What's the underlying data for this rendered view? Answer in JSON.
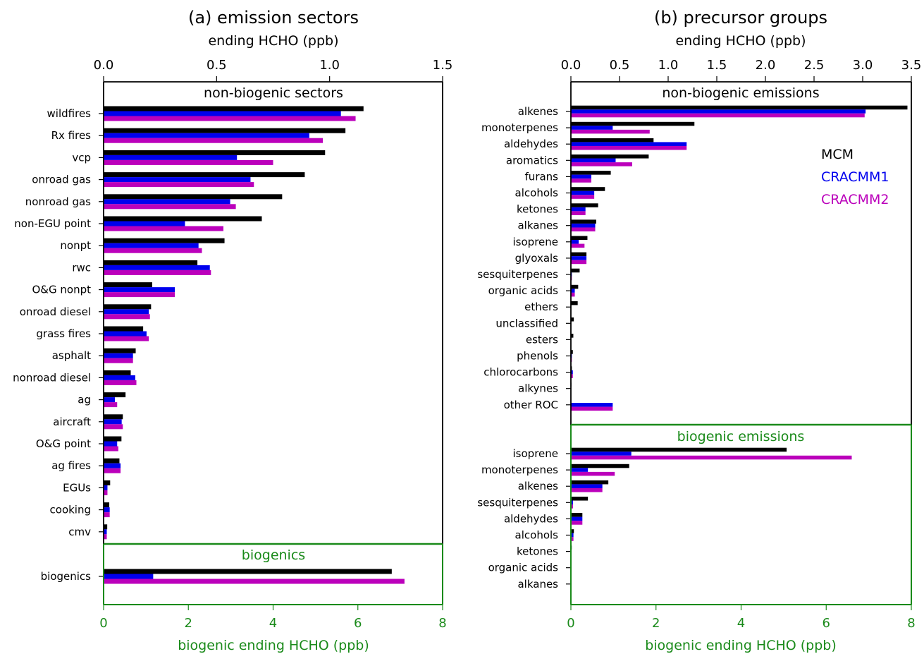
{
  "colors": {
    "MCM": "#000000",
    "CRACMM1": "#0000ee",
    "CRACMM2": "#bb00bb",
    "biogenic": "#1a8a1a",
    "axis": "#000000"
  },
  "legend": [
    "MCM",
    "CRACMM1",
    "CRACMM2"
  ],
  "chart_data": [
    {
      "type": "bar",
      "orientation": "horizontal",
      "title": "(a) emission sectors",
      "top_axis": {
        "label": "ending HCHO (ppb)",
        "range": [
          0,
          1.5
        ],
        "ticks": [
          "0.0",
          "0.5",
          "1.0",
          "1.5"
        ]
      },
      "bottom_axis": {
        "label": "biogenic ending HCHO (ppb)",
        "range": [
          0,
          8
        ],
        "ticks": [
          "0",
          "2",
          "4",
          "6",
          "8"
        ]
      },
      "top_panel": {
        "title": "non-biogenic sectors",
        "categories": [
          "wildfires",
          "Rx fires",
          "vcp",
          "onroad gas",
          "nonroad gas",
          "non-EGU point",
          "nonpt",
          "rwc",
          "O&G nonpt",
          "onroad diesel",
          "grass fires",
          "asphalt",
          "nonroad diesel",
          "ag",
          "aircraft",
          "O&G point",
          "ag fires",
          "EGUs",
          "cooking",
          "cmv"
        ],
        "series": [
          {
            "name": "MCM",
            "values": [
              1.15,
              1.07,
              0.98,
              0.89,
              0.79,
              0.7,
              0.535,
              0.415,
              0.215,
              0.21,
              0.175,
              0.142,
              0.12,
              0.097,
              0.085,
              0.079,
              0.07,
              0.029,
              0.025,
              0.016
            ]
          },
          {
            "name": "CRACMM1",
            "values": [
              1.05,
              0.91,
              0.59,
              0.65,
              0.56,
              0.36,
              0.42,
              0.47,
              0.315,
              0.2,
              0.19,
              0.13,
              0.14,
              0.05,
              0.08,
              0.06,
              0.075,
              0.017,
              0.027,
              0.014
            ]
          },
          {
            "name": "CRACMM2",
            "values": [
              1.115,
              0.97,
              0.75,
              0.665,
              0.585,
              0.53,
              0.435,
              0.475,
              0.315,
              0.205,
              0.2,
              0.13,
              0.145,
              0.06,
              0.085,
              0.065,
              0.075,
              0.017,
              0.027,
              0.014
            ]
          }
        ]
      },
      "bottom_panel": {
        "title": "biogenics",
        "categories": [
          "biogenics"
        ],
        "series": [
          {
            "name": "MCM",
            "values": [
              6.8
            ]
          },
          {
            "name": "CRACMM1",
            "values": [
              1.17
            ]
          },
          {
            "name": "CRACMM2",
            "values": [
              7.1
            ]
          }
        ]
      }
    },
    {
      "type": "bar",
      "orientation": "horizontal",
      "title": "(b) precursor groups",
      "top_axis": {
        "label": "ending HCHO (ppb)",
        "range": [
          0,
          3.5
        ],
        "ticks": [
          "0.0",
          "0.5",
          "1.0",
          "1.5",
          "2.0",
          "2.5",
          "3.0",
          "3.5"
        ]
      },
      "bottom_axis": {
        "label": "biogenic ending HCHO (ppb)",
        "range": [
          0,
          8
        ],
        "ticks": [
          "0",
          "2",
          "4",
          "6",
          "8"
        ]
      },
      "top_panel": {
        "title": "non-biogenic emissions",
        "categories": [
          "alkenes",
          "monoterpenes",
          "aldehydes",
          "aromatics",
          "furans",
          "alcohols",
          "ketones",
          "alkanes",
          "isoprene",
          "glyoxals",
          "sesquiterpenes",
          "organic acids",
          "ethers",
          "unclassified",
          "esters",
          "phenols",
          "chlorocarbons",
          "alkynes",
          "other ROC"
        ],
        "series": [
          {
            "name": "MCM",
            "values": [
              3.46,
              1.27,
              0.85,
              0.8,
              0.41,
              0.35,
              0.28,
              0.26,
              0.17,
              0.16,
              0.09,
              0.075,
              0.07,
              0.03,
              0.025,
              0.02,
              0.01,
              0.005,
              0.0
            ]
          },
          {
            "name": "CRACMM1",
            "values": [
              3.03,
              0.43,
              1.19,
              0.46,
              0.21,
              0.24,
              0.15,
              0.25,
              0.08,
              0.16,
              0.01,
              0.04,
              0.0,
              0.0,
              0.0,
              0.01,
              0.02,
              0.0,
              0.43
            ]
          },
          {
            "name": "CRACMM2",
            "values": [
              3.02,
              0.81,
              1.19,
              0.63,
              0.21,
              0.24,
              0.15,
              0.25,
              0.14,
              0.16,
              0.01,
              0.04,
              0.0,
              0.0,
              0.0,
              0.01,
              0.02,
              0.0,
              0.43
            ]
          }
        ]
      },
      "bottom_panel": {
        "title": "biogenic emissions",
        "categories": [
          "isoprene",
          "monoterpenes",
          "alkenes",
          "sesquiterpenes",
          "aldehydes",
          "alcohols",
          "ketones",
          "organic acids",
          "alkanes"
        ],
        "series": [
          {
            "name": "MCM",
            "values": [
              5.07,
              1.37,
              0.88,
              0.4,
              0.27,
              0.07,
              0.02,
              0.01,
              0.01
            ]
          },
          {
            "name": "CRACMM1",
            "values": [
              1.42,
              0.4,
              0.74,
              0.05,
              0.27,
              0.06,
              0.0,
              0.0,
              0.0
            ]
          },
          {
            "name": "CRACMM2",
            "values": [
              6.6,
              1.03,
              0.74,
              0.05,
              0.27,
              0.06,
              0.0,
              0.0,
              0.0
            ]
          }
        ]
      }
    }
  ]
}
